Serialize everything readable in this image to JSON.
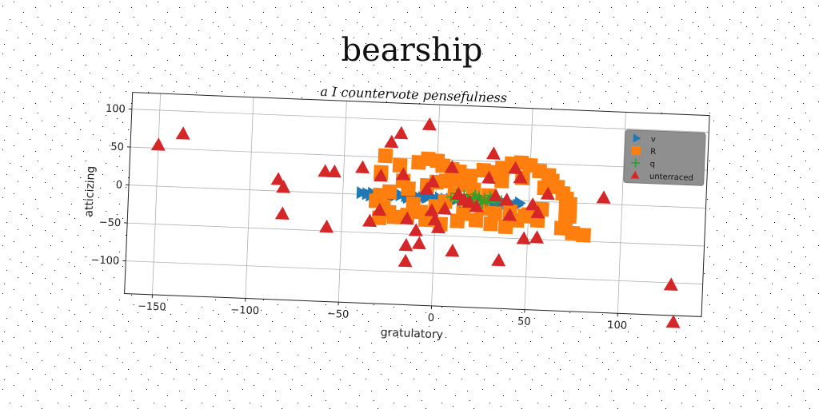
{
  "chart_data": {
    "type": "scatter",
    "title": "bearship",
    "subtitle": "a I countervote pensefulness",
    "xlabel": "gratulatory",
    "ylabel": "atticizing",
    "xlim": [
      -165,
      145
    ],
    "ylim": [
      -143,
      122
    ],
    "xticks": [
      -150,
      -100,
      -50,
      0,
      50,
      100
    ],
    "yticks": [
      -100,
      -50,
      0,
      50,
      100
    ],
    "xtick_labels": [
      "−150",
      "−100",
      "−50",
      "0",
      "50",
      "100"
    ],
    "ytick_labels": [
      "−100",
      "−50",
      "0",
      "50",
      "100"
    ],
    "grid": true,
    "legend_position": "top-right",
    "series": [
      {
        "name": "v",
        "marker": "triangle-right",
        "color": "#1f77b4",
        "points": [
          [
            -40,
            2
          ],
          [
            -37,
            1
          ],
          [
            -34,
            2
          ],
          [
            -31,
            0
          ],
          [
            -28,
            1
          ],
          [
            -25,
            1
          ],
          [
            -22,
            0
          ],
          [
            -19,
            1
          ],
          [
            -16,
            0
          ],
          [
            -13,
            0
          ],
          [
            -10,
            0
          ],
          [
            -7,
            -1
          ],
          [
            -4,
            0
          ],
          [
            -1,
            -1
          ],
          [
            2,
            -1
          ],
          [
            5,
            -2
          ],
          [
            8,
            -2
          ],
          [
            11,
            -2
          ],
          [
            14,
            -3
          ],
          [
            17,
            -3
          ],
          [
            20,
            -3
          ],
          [
            23,
            -3
          ],
          [
            26,
            -4
          ],
          [
            29,
            -4
          ],
          [
            32,
            -4
          ],
          [
            35,
            -5
          ],
          [
            38,
            -5
          ],
          [
            41,
            -5
          ],
          [
            44,
            -6
          ],
          [
            -35,
            -1
          ],
          [
            -25,
            -2
          ],
          [
            -15,
            -2
          ],
          [
            -5,
            -1
          ],
          [
            15,
            0
          ],
          [
            25,
            -1
          ],
          [
            45,
            -3
          ]
        ]
      },
      {
        "name": "R",
        "marker": "square",
        "color": "#ff7f0e",
        "points": [
          [
            -28,
            52
          ],
          [
            -30,
            30
          ],
          [
            -20,
            40
          ],
          [
            -10,
            45
          ],
          [
            -5,
            50
          ],
          [
            0,
            48
          ],
          [
            3,
            42
          ],
          [
            8,
            38
          ],
          [
            12,
            35
          ],
          [
            18,
            30
          ],
          [
            25,
            38
          ],
          [
            30,
            36
          ],
          [
            35,
            42
          ],
          [
            40,
            48
          ],
          [
            45,
            50
          ],
          [
            50,
            47
          ],
          [
            55,
            40
          ],
          [
            60,
            35
          ],
          [
            62,
            28
          ],
          [
            65,
            20
          ],
          [
            68,
            12
          ],
          [
            70,
            5
          ],
          [
            72,
            -2
          ],
          [
            70,
            -10
          ],
          [
            72,
            -18
          ],
          [
            70,
            -26
          ],
          [
            68,
            -34
          ],
          [
            74,
            -40
          ],
          [
            80,
            -42
          ],
          [
            55,
            -25
          ],
          [
            48,
            -20
          ],
          [
            40,
            -15
          ],
          [
            32,
            -18
          ],
          [
            25,
            -12
          ],
          [
            20,
            12
          ],
          [
            15,
            18
          ],
          [
            10,
            24
          ],
          [
            5,
            22
          ],
          [
            0,
            20
          ],
          [
            -5,
            15
          ],
          [
            -15,
            10
          ],
          [
            -25,
            5
          ],
          [
            -30,
            0
          ],
          [
            -32,
            -8
          ],
          [
            -28,
            -15
          ],
          [
            -25,
            -22
          ],
          [
            -30,
            -30
          ],
          [
            -22,
            -28
          ],
          [
            -15,
            -25
          ],
          [
            -8,
            -20
          ],
          [
            0,
            -12
          ],
          [
            5,
            -5
          ],
          [
            10,
            5
          ],
          [
            15,
            -20
          ],
          [
            22,
            -28
          ],
          [
            30,
            -32
          ],
          [
            38,
            -35
          ],
          [
            44,
            -26
          ],
          [
            50,
            -18
          ],
          [
            57,
            -10
          ],
          [
            35,
            25
          ],
          [
            28,
            5
          ],
          [
            18,
            -8
          ],
          [
            12,
            -30
          ],
          [
            3,
            -35
          ],
          [
            -5,
            -30
          ],
          [
            -12,
            -10
          ],
          [
            -18,
            20
          ],
          [
            58,
            18
          ],
          [
            46,
            30
          ]
        ]
      },
      {
        "name": "q",
        "marker": "plus",
        "color": "#2ca02c",
        "points": [
          [
            10,
            -2
          ],
          [
            12,
            2
          ],
          [
            14,
            -4
          ],
          [
            16,
            1
          ],
          [
            18,
            -1
          ],
          [
            20,
            3
          ],
          [
            22,
            -3
          ],
          [
            24,
            0
          ],
          [
            26,
            2
          ],
          [
            28,
            -2
          ],
          [
            30,
            1
          ],
          [
            32,
            -1
          ],
          [
            15,
            5
          ],
          [
            19,
            -5
          ],
          [
            23,
            4
          ],
          [
            27,
            -4
          ],
          [
            31,
            3
          ],
          [
            35,
            0
          ],
          [
            13,
            -6
          ],
          [
            21,
            6
          ],
          [
            25,
            -6
          ],
          [
            29,
            5
          ],
          [
            17,
            0
          ],
          [
            33,
            -3
          ],
          [
            8,
            1
          ],
          [
            11,
            6
          ],
          [
            24,
            -2
          ],
          [
            20,
            0
          ]
        ]
      },
      {
        "name": "unterraced",
        "marker": "triangle-up",
        "color": "#d62728",
        "points": [
          [
            -150,
            54
          ],
          [
            -137,
            70
          ],
          [
            -85,
            15
          ],
          [
            -82,
            5
          ],
          [
            -82,
            -30
          ],
          [
            -60,
            28
          ],
          [
            -55,
            28
          ],
          [
            -58,
            -45
          ],
          [
            -40,
            35
          ],
          [
            -35,
            -35
          ],
          [
            -30,
            25
          ],
          [
            -30,
            -20
          ],
          [
            -25,
            70
          ],
          [
            -20,
            82
          ],
          [
            -18,
            28
          ],
          [
            -15,
            -30
          ],
          [
            -15,
            -65
          ],
          [
            -15,
            -86
          ],
          [
            -10,
            -45
          ],
          [
            -8,
            -62
          ],
          [
            -5,
            95
          ],
          [
            -5,
            10
          ],
          [
            -2,
            -18
          ],
          [
            -2,
            20
          ],
          [
            0,
            -30
          ],
          [
            2,
            -40
          ],
          [
            5,
            -15
          ],
          [
            8,
            40
          ],
          [
            10,
            -70
          ],
          [
            12,
            5
          ],
          [
            15,
            -2
          ],
          [
            18,
            -5
          ],
          [
            22,
            -10
          ],
          [
            28,
            28
          ],
          [
            30,
            60
          ],
          [
            32,
            5
          ],
          [
            35,
            -80
          ],
          [
            38,
            0
          ],
          [
            40,
            -20
          ],
          [
            42,
            42
          ],
          [
            45,
            30
          ],
          [
            48,
            -50
          ],
          [
            52,
            -5
          ],
          [
            55,
            -48
          ],
          [
            55,
            -15
          ],
          [
            60,
            10
          ],
          [
            90,
            8
          ],
          [
            128,
            -103
          ],
          [
            130,
            -152
          ]
        ]
      }
    ]
  }
}
